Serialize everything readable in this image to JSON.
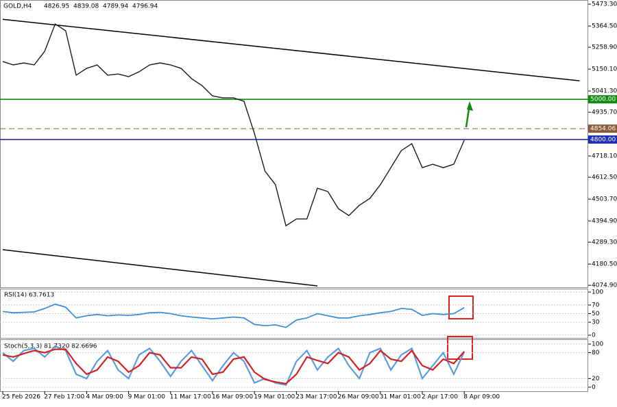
{
  "chart_data": [
    {
      "type": "line",
      "title": "GOLD,H4",
      "ohlc": [
        4826.95,
        4839.08,
        4789.94,
        4796.94
      ],
      "color": "#1a1a1a",
      "categories": [
        "25 Feb 2026",
        null,
        null,
        null,
        "27 Feb 17:00",
        null,
        null,
        null,
        "4 Mar 09:00",
        null,
        null,
        null,
        "9 Mar 01:00",
        null,
        null,
        null,
        "11 Mar 17:00",
        null,
        null,
        null,
        "16 Mar 09:00",
        null,
        null,
        null,
        "19 Mar 01:00",
        null,
        null,
        null,
        "23 Mar 17:00",
        null,
        null,
        null,
        "26 Mar 09:00",
        null,
        null,
        null,
        "31 Mar 01:00",
        null,
        null,
        null,
        "2 Apr 17:00",
        null,
        null,
        null,
        "8 Apr 09:00",
        null,
        null,
        null,
        null,
        null,
        null,
        null,
        null,
        null,
        null,
        null
      ],
      "values": [
        5188,
        5171,
        5181,
        5171,
        5239,
        5375,
        5341,
        5120,
        5154,
        5171,
        5120,
        5126,
        5113,
        5137,
        5171,
        5181,
        5171,
        5154,
        5103,
        5068,
        5017,
        5007,
        5007,
        4990,
        4830,
        4643,
        4575,
        4371,
        4405,
        4405,
        4558,
        4541,
        4456,
        4422,
        4473,
        4507,
        4575,
        4660,
        4745,
        4779,
        4660,
        4677,
        4660,
        4677,
        4797,
        null,
        null,
        null,
        null,
        null,
        null,
        null,
        null,
        null,
        null,
        null
      ],
      "ylim": [
        4065,
        5494
      ],
      "yticks": [
        {
          "value": 5473.3,
          "label": "5473.30"
        },
        {
          "value": 5364.5,
          "label": "5364.50"
        },
        {
          "value": 5258.9,
          "label": "5258.90"
        },
        {
          "value": 5150.1,
          "label": "5150.10"
        },
        {
          "value": 5041.3,
          "label": "5041.30"
        },
        {
          "value": 4935.7,
          "label": "4935.70"
        },
        {
          "value": 4718.1,
          "label": "4718.10"
        },
        {
          "value": 4612.5,
          "label": "4612.50"
        },
        {
          "value": 4503.7,
          "label": "4503.70"
        },
        {
          "value": 4394.9,
          "label": "4394.90"
        },
        {
          "value": 4289.3,
          "label": "4289.30"
        },
        {
          "value": 4180.5,
          "label": "4180.50"
        },
        {
          "value": 4074.9,
          "label": "4074.90"
        }
      ],
      "hlines": [
        {
          "value": 5000,
          "label": "5000.00",
          "color": "#138a13",
          "dashed": false
        },
        {
          "value": 4854.06,
          "label": "4854.06",
          "color": "#8b5a3c",
          "dashed": true
        },
        {
          "value": 4800,
          "label": "4800.00",
          "color": "#1f2fb5",
          "dashed": false
        }
      ],
      "trendlines": [
        {
          "start": [
            0,
            5398
          ],
          "end": [
            55,
            5092
          ],
          "color": "#000000"
        },
        {
          "start": [
            0,
            4252
          ],
          "end": [
            30,
            4072
          ],
          "color": "#000000"
        }
      ],
      "grid": false
    },
    {
      "type": "line",
      "title": "RSI(14) 63.7613",
      "color": "#3c8fd8",
      "values": [
        55,
        52,
        53,
        54,
        62,
        72,
        65,
        40,
        45,
        48,
        45,
        47,
        46,
        48,
        52,
        53,
        50,
        45,
        42,
        40,
        38,
        40,
        42,
        40,
        25,
        22,
        24,
        18,
        35,
        40,
        50,
        45,
        40,
        40,
        45,
        48,
        52,
        55,
        62,
        60,
        46,
        50,
        48,
        50,
        63.76
      ],
      "ylim": [
        0,
        100
      ],
      "yticks": [
        0,
        30,
        50,
        70,
        100
      ],
      "grid": true
    },
    {
      "type": "line",
      "title": "Stoch(5,3,3) 81.7320 82.6696",
      "series": [
        {
          "color": "#5b9be0",
          "values": [
            80,
            60,
            85,
            90,
            70,
            95,
            85,
            30,
            20,
            60,
            85,
            40,
            20,
            75,
            90,
            60,
            25,
            60,
            85,
            50,
            15,
            50,
            80,
            60,
            10,
            20,
            10,
            5,
            60,
            85,
            40,
            70,
            90,
            50,
            20,
            80,
            90,
            40,
            75,
            90,
            20,
            50,
            80,
            30,
            81.73
          ]
        },
        {
          "color": "#d42020",
          "values": [
            75,
            70,
            78,
            85,
            80,
            88,
            88,
            55,
            30,
            40,
            70,
            60,
            35,
            50,
            80,
            75,
            45,
            45,
            70,
            65,
            30,
            35,
            65,
            70,
            35,
            18,
            12,
            8,
            30,
            70,
            62,
            55,
            80,
            70,
            40,
            55,
            85,
            65,
            60,
            85,
            50,
            40,
            65,
            55,
            82.67
          ]
        }
      ],
      "ylim": [
        0,
        100
      ],
      "yticks": [
        0,
        20,
        80,
        100
      ],
      "grid": true
    }
  ]
}
